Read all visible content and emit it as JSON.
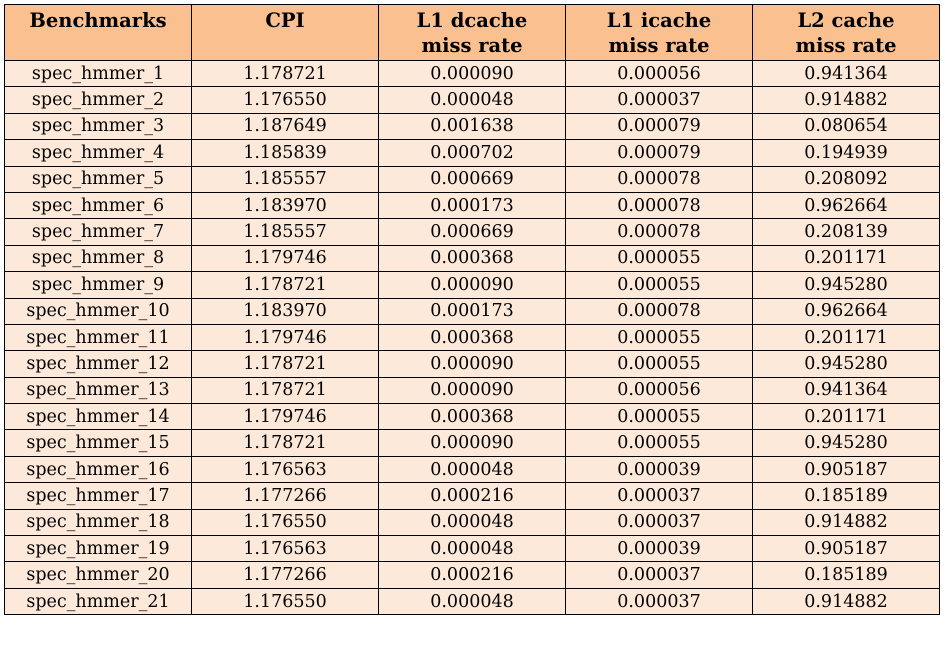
{
  "colors": {
    "header_bg": "#fac090",
    "row_bg": "#fde9d9",
    "border": "#000000"
  },
  "headers": [
    "Benchmarks",
    "CPI",
    "L1 dcache\nmiss rate",
    "L1 icache\nmiss rate",
    "L2 cache\nmiss rate"
  ],
  "rows": [
    [
      "spec_hmmer_1",
      "1.178721",
      "0.000090",
      "0.000056",
      "0.941364"
    ],
    [
      "spec_hmmer_2",
      "1.176550",
      "0.000048",
      "0.000037",
      "0.914882"
    ],
    [
      "spec_hmmer_3",
      "1.187649",
      "0.001638",
      "0.000079",
      "0.080654"
    ],
    [
      "spec_hmmer_4",
      "1.185839",
      "0.000702",
      "0.000079",
      "0.194939"
    ],
    [
      "spec_hmmer_5",
      "1.185557",
      "0.000669",
      "0.000078",
      "0.208092"
    ],
    [
      "spec_hmmer_6",
      "1.183970",
      "0.000173",
      "0.000078",
      "0.962664"
    ],
    [
      "spec_hmmer_7",
      "1.185557",
      "0.000669",
      "0.000078",
      "0.208139"
    ],
    [
      "spec_hmmer_8",
      "1.179746",
      "0.000368",
      "0.000055",
      "0.201171"
    ],
    [
      "spec_hmmer_9",
      "1.178721",
      "0.000090",
      "0.000055",
      "0.945280"
    ],
    [
      "spec_hmmer_10",
      "1.183970",
      "0.000173",
      "0.000078",
      "0.962664"
    ],
    [
      "spec_hmmer_11",
      "1.179746",
      "0.000368",
      "0.000055",
      "0.201171"
    ],
    [
      "spec_hmmer_12",
      "1.178721",
      "0.000090",
      "0.000055",
      "0.945280"
    ],
    [
      "spec_hmmer_13",
      "1.178721",
      "0.000090",
      "0.000056",
      "0.941364"
    ],
    [
      "spec_hmmer_14",
      "1.179746",
      "0.000368",
      "0.000055",
      "0.201171"
    ],
    [
      "spec_hmmer_15",
      "1.178721",
      "0.000090",
      "0.000055",
      "0.945280"
    ],
    [
      "spec_hmmer_16",
      "1.176563",
      "0.000048",
      "0.000039",
      "0.905187"
    ],
    [
      "spec_hmmer_17",
      "1.177266",
      "0.000216",
      "0.000037",
      "0.185189"
    ],
    [
      "spec_hmmer_18",
      "1.176550",
      "0.000048",
      "0.000037",
      "0.914882"
    ],
    [
      "spec_hmmer_19",
      "1.176563",
      "0.000048",
      "0.000039",
      "0.905187"
    ],
    [
      "spec_hmmer_20",
      "1.177266",
      "0.000216",
      "0.000037",
      "0.185189"
    ],
    [
      "spec_hmmer_21",
      "1.176550",
      "0.000048",
      "0.000037",
      "0.914882"
    ]
  ]
}
